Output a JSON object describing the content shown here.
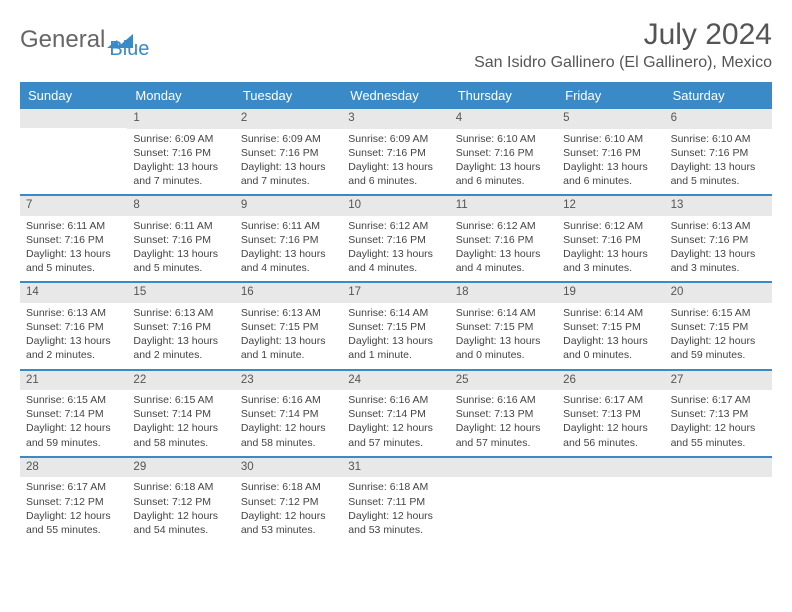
{
  "brand": {
    "part1": "General",
    "part2": "Blue"
  },
  "title": {
    "month": "July 2024",
    "location": "San Isidro Gallinero (El Gallinero), Mexico"
  },
  "colors": {
    "header_bg": "#3a8ac8",
    "header_text": "#ffffff",
    "daynum_bg": "#e8e8e8",
    "week_divider": "#3a8ac8",
    "text": "#444444",
    "title_text": "#555555"
  },
  "dayHeaders": [
    "Sunday",
    "Monday",
    "Tuesday",
    "Wednesday",
    "Thursday",
    "Friday",
    "Saturday"
  ],
  "weeks": [
    [
      {
        "day": "",
        "sunrise": "",
        "sunset": "",
        "daylight1": "",
        "daylight2": ""
      },
      {
        "day": "1",
        "sunrise": "Sunrise: 6:09 AM",
        "sunset": "Sunset: 7:16 PM",
        "daylight1": "Daylight: 13 hours",
        "daylight2": "and 7 minutes."
      },
      {
        "day": "2",
        "sunrise": "Sunrise: 6:09 AM",
        "sunset": "Sunset: 7:16 PM",
        "daylight1": "Daylight: 13 hours",
        "daylight2": "and 7 minutes."
      },
      {
        "day": "3",
        "sunrise": "Sunrise: 6:09 AM",
        "sunset": "Sunset: 7:16 PM",
        "daylight1": "Daylight: 13 hours",
        "daylight2": "and 6 minutes."
      },
      {
        "day": "4",
        "sunrise": "Sunrise: 6:10 AM",
        "sunset": "Sunset: 7:16 PM",
        "daylight1": "Daylight: 13 hours",
        "daylight2": "and 6 minutes."
      },
      {
        "day": "5",
        "sunrise": "Sunrise: 6:10 AM",
        "sunset": "Sunset: 7:16 PM",
        "daylight1": "Daylight: 13 hours",
        "daylight2": "and 6 minutes."
      },
      {
        "day": "6",
        "sunrise": "Sunrise: 6:10 AM",
        "sunset": "Sunset: 7:16 PM",
        "daylight1": "Daylight: 13 hours",
        "daylight2": "and 5 minutes."
      }
    ],
    [
      {
        "day": "7",
        "sunrise": "Sunrise: 6:11 AM",
        "sunset": "Sunset: 7:16 PM",
        "daylight1": "Daylight: 13 hours",
        "daylight2": "and 5 minutes."
      },
      {
        "day": "8",
        "sunrise": "Sunrise: 6:11 AM",
        "sunset": "Sunset: 7:16 PM",
        "daylight1": "Daylight: 13 hours",
        "daylight2": "and 5 minutes."
      },
      {
        "day": "9",
        "sunrise": "Sunrise: 6:11 AM",
        "sunset": "Sunset: 7:16 PM",
        "daylight1": "Daylight: 13 hours",
        "daylight2": "and 4 minutes."
      },
      {
        "day": "10",
        "sunrise": "Sunrise: 6:12 AM",
        "sunset": "Sunset: 7:16 PM",
        "daylight1": "Daylight: 13 hours",
        "daylight2": "and 4 minutes."
      },
      {
        "day": "11",
        "sunrise": "Sunrise: 6:12 AM",
        "sunset": "Sunset: 7:16 PM",
        "daylight1": "Daylight: 13 hours",
        "daylight2": "and 4 minutes."
      },
      {
        "day": "12",
        "sunrise": "Sunrise: 6:12 AM",
        "sunset": "Sunset: 7:16 PM",
        "daylight1": "Daylight: 13 hours",
        "daylight2": "and 3 minutes."
      },
      {
        "day": "13",
        "sunrise": "Sunrise: 6:13 AM",
        "sunset": "Sunset: 7:16 PM",
        "daylight1": "Daylight: 13 hours",
        "daylight2": "and 3 minutes."
      }
    ],
    [
      {
        "day": "14",
        "sunrise": "Sunrise: 6:13 AM",
        "sunset": "Sunset: 7:16 PM",
        "daylight1": "Daylight: 13 hours",
        "daylight2": "and 2 minutes."
      },
      {
        "day": "15",
        "sunrise": "Sunrise: 6:13 AM",
        "sunset": "Sunset: 7:16 PM",
        "daylight1": "Daylight: 13 hours",
        "daylight2": "and 2 minutes."
      },
      {
        "day": "16",
        "sunrise": "Sunrise: 6:13 AM",
        "sunset": "Sunset: 7:15 PM",
        "daylight1": "Daylight: 13 hours",
        "daylight2": "and 1 minute."
      },
      {
        "day": "17",
        "sunrise": "Sunrise: 6:14 AM",
        "sunset": "Sunset: 7:15 PM",
        "daylight1": "Daylight: 13 hours",
        "daylight2": "and 1 minute."
      },
      {
        "day": "18",
        "sunrise": "Sunrise: 6:14 AM",
        "sunset": "Sunset: 7:15 PM",
        "daylight1": "Daylight: 13 hours",
        "daylight2": "and 0 minutes."
      },
      {
        "day": "19",
        "sunrise": "Sunrise: 6:14 AM",
        "sunset": "Sunset: 7:15 PM",
        "daylight1": "Daylight: 13 hours",
        "daylight2": "and 0 minutes."
      },
      {
        "day": "20",
        "sunrise": "Sunrise: 6:15 AM",
        "sunset": "Sunset: 7:15 PM",
        "daylight1": "Daylight: 12 hours",
        "daylight2": "and 59 minutes."
      }
    ],
    [
      {
        "day": "21",
        "sunrise": "Sunrise: 6:15 AM",
        "sunset": "Sunset: 7:14 PM",
        "daylight1": "Daylight: 12 hours",
        "daylight2": "and 59 minutes."
      },
      {
        "day": "22",
        "sunrise": "Sunrise: 6:15 AM",
        "sunset": "Sunset: 7:14 PM",
        "daylight1": "Daylight: 12 hours",
        "daylight2": "and 58 minutes."
      },
      {
        "day": "23",
        "sunrise": "Sunrise: 6:16 AM",
        "sunset": "Sunset: 7:14 PM",
        "daylight1": "Daylight: 12 hours",
        "daylight2": "and 58 minutes."
      },
      {
        "day": "24",
        "sunrise": "Sunrise: 6:16 AM",
        "sunset": "Sunset: 7:14 PM",
        "daylight1": "Daylight: 12 hours",
        "daylight2": "and 57 minutes."
      },
      {
        "day": "25",
        "sunrise": "Sunrise: 6:16 AM",
        "sunset": "Sunset: 7:13 PM",
        "daylight1": "Daylight: 12 hours",
        "daylight2": "and 57 minutes."
      },
      {
        "day": "26",
        "sunrise": "Sunrise: 6:17 AM",
        "sunset": "Sunset: 7:13 PM",
        "daylight1": "Daylight: 12 hours",
        "daylight2": "and 56 minutes."
      },
      {
        "day": "27",
        "sunrise": "Sunrise: 6:17 AM",
        "sunset": "Sunset: 7:13 PM",
        "daylight1": "Daylight: 12 hours",
        "daylight2": "and 55 minutes."
      }
    ],
    [
      {
        "day": "28",
        "sunrise": "Sunrise: 6:17 AM",
        "sunset": "Sunset: 7:12 PM",
        "daylight1": "Daylight: 12 hours",
        "daylight2": "and 55 minutes."
      },
      {
        "day": "29",
        "sunrise": "Sunrise: 6:18 AM",
        "sunset": "Sunset: 7:12 PM",
        "daylight1": "Daylight: 12 hours",
        "daylight2": "and 54 minutes."
      },
      {
        "day": "30",
        "sunrise": "Sunrise: 6:18 AM",
        "sunset": "Sunset: 7:12 PM",
        "daylight1": "Daylight: 12 hours",
        "daylight2": "and 53 minutes."
      },
      {
        "day": "31",
        "sunrise": "Sunrise: 6:18 AM",
        "sunset": "Sunset: 7:11 PM",
        "daylight1": "Daylight: 12 hours",
        "daylight2": "and 53 minutes."
      },
      {
        "day": "",
        "sunrise": "",
        "sunset": "",
        "daylight1": "",
        "daylight2": ""
      },
      {
        "day": "",
        "sunrise": "",
        "sunset": "",
        "daylight1": "",
        "daylight2": ""
      },
      {
        "day": "",
        "sunrise": "",
        "sunset": "",
        "daylight1": "",
        "daylight2": ""
      }
    ]
  ]
}
